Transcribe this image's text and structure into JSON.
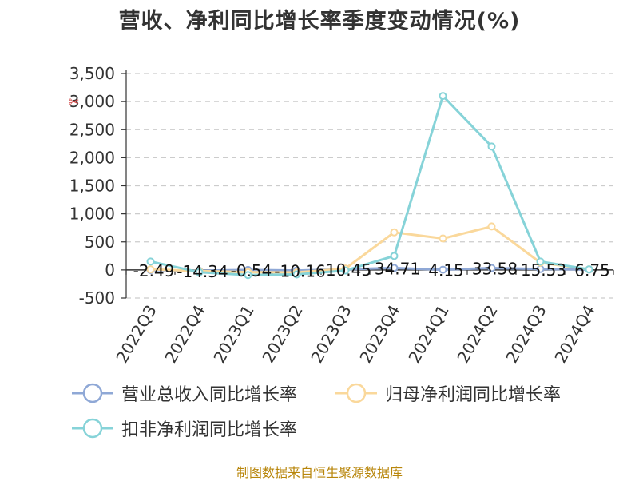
{
  "title": "营收、净利同比增长率季度变动情况(%)",
  "source": "制图数据来自恒生聚源数据库",
  "icons": {
    "toolbox": "scissors-icon"
  },
  "colors": {
    "revenue": "#8fa8d6",
    "parent_profit": "#fad89b",
    "deducted_profit": "#86d3d8",
    "grid": "#cccccc",
    "axis": "#333333"
  },
  "chart_data": {
    "type": "line",
    "title": "营收、净利同比增长率季度变动情况(%)",
    "categories": [
      "2022Q3",
      "2022Q4",
      "2023Q1",
      "2023Q2",
      "2023Q3",
      "2023Q4",
      "2024Q1",
      "2024Q2",
      "2024Q3",
      "2024Q4"
    ],
    "ylim": [
      -500,
      3500
    ],
    "yticks": [
      -500,
      0,
      500,
      1000,
      1500,
      2000,
      2500,
      3000,
      3500
    ],
    "ytick_labels": [
      "-500",
      "0",
      "500",
      "1,000",
      "1,500",
      "2,000",
      "2,500",
      "3,000",
      "3,500"
    ],
    "grid": true,
    "legend_position": "bottom",
    "series": [
      {
        "name": "营业总收入同比增长率",
        "color": "#8fa8d6",
        "values": [
          -2.49,
          -14.34,
          -0.54,
          -10.16,
          10.45,
          34.71,
          4.15,
          33.58,
          15.53,
          6.75
        ],
        "labels": [
          "-2.49",
          "-14.34",
          "-0.54",
          "-10.16",
          "10.45",
          "34.71",
          "4.15",
          "33.58",
          "15.53",
          "6.75"
        ]
      },
      {
        "name": "归母净利润同比增长率",
        "color": "#fad89b",
        "values": [
          10,
          -20,
          -40,
          -45,
          25,
          670,
          560,
          775,
          130,
          10
        ]
      },
      {
        "name": "扣非净利润同比增长率",
        "color": "#86d3d8",
        "values": [
          150,
          -40,
          -90,
          -80,
          -10,
          250,
          3100,
          2200,
          150,
          10
        ]
      }
    ]
  }
}
